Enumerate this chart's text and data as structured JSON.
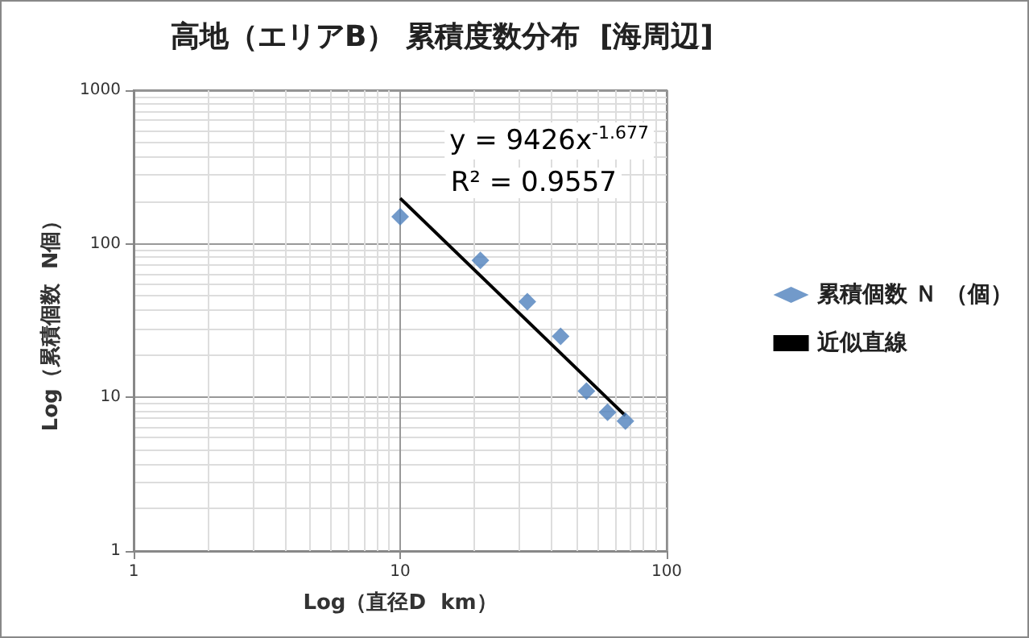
{
  "chart_data": {
    "type": "scatter",
    "title": "高地（エリアB） 累積度数分布  [海周辺]",
    "xlabel": "Log（直径D  km）",
    "ylabel": "Log（累積個数  N個）",
    "x": [
      10,
      20,
      30,
      40,
      50,
      60,
      70
    ],
    "series": [
      {
        "name": "累積個数 Ｎ （個）",
        "color": "#4f81bd",
        "marker": "diamond",
        "values": [
          150,
          78,
          42,
          25,
          11,
          8,
          7
        ]
      },
      {
        "name": "近似直線",
        "type": "line",
        "color": "#000000",
        "marker": "none",
        "x": [
          10,
          70
        ],
        "values": [
          198,
          7.6
        ]
      }
    ],
    "annotations": [
      "y = 9426x$^{-1.677}$",
      "R² = 0.9557"
    ],
    "log": "xy",
    "xlim": [
      1,
      100
    ],
    "ylim": [
      1,
      1000
    ],
    "xticks": [
      1,
      10,
      100
    ],
    "yticks": [
      1,
      10,
      100,
      1000
    ],
    "grid": true,
    "legend": "right"
  }
}
